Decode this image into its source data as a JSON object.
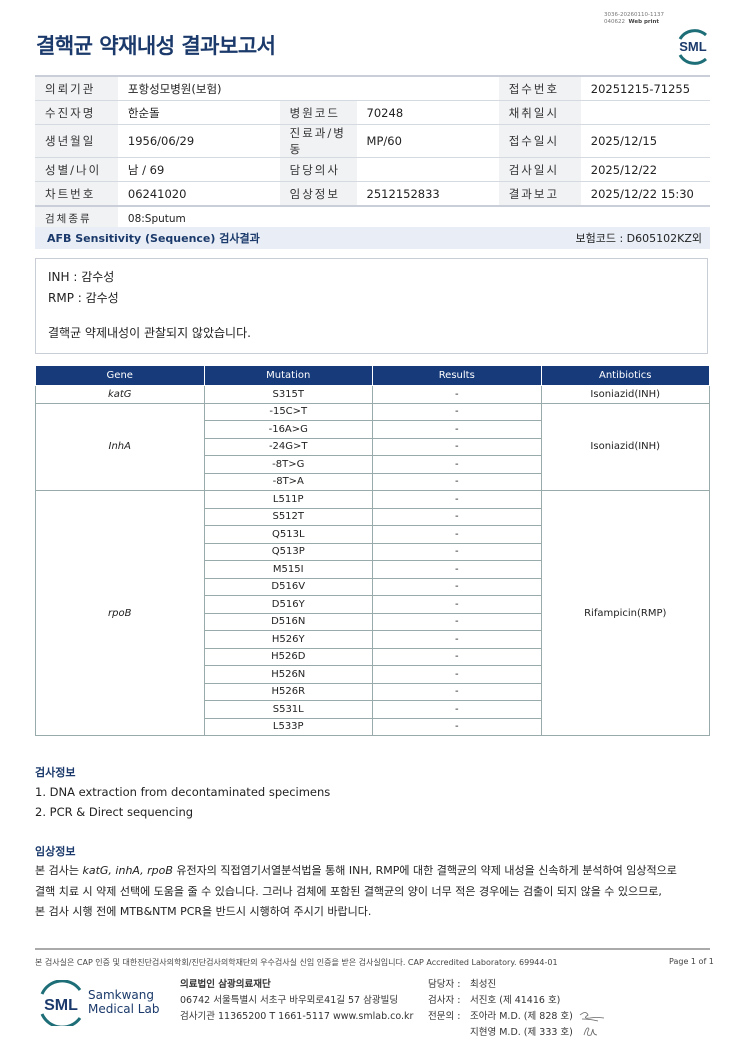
{
  "header": {
    "title": "결핵균 약재내성 결과보고서",
    "meta_line1": "3036-20260110-1137",
    "meta_line2": "040622",
    "web_print": "Web print",
    "logo": "SML"
  },
  "info": {
    "rows": [
      [
        {
          "l": "의뢰기관",
          "v": "포항성모병원(보험)"
        },
        {
          "l": "접수번호",
          "v": "20251215-71255"
        }
      ],
      [
        {
          "l": "수진자명",
          "v": "한순돌"
        },
        {
          "l": "병원코드",
          "v": "70248"
        },
        {
          "l": "채취일시",
          "v": ""
        }
      ],
      [
        {
          "l": "생년월일",
          "v": "1956/06/29"
        },
        {
          "l": "진료과/병동",
          "v": "MP/60"
        },
        {
          "l": "접수일시",
          "v": "2025/12/15"
        }
      ],
      [
        {
          "l": "성별/나이",
          "v": "남 / 69"
        },
        {
          "l": "담당의사",
          "v": ""
        },
        {
          "l": "검사일시",
          "v": "2025/12/22"
        }
      ],
      [
        {
          "l": "차트번호",
          "v": "06241020"
        },
        {
          "l": "임상정보",
          "v": "2512152833"
        },
        {
          "l": "결과보고",
          "v": "2025/12/22 15:30"
        }
      ],
      [
        {
          "l": "검체종류",
          "v": "08:Sputum"
        }
      ]
    ]
  },
  "section": {
    "title": "AFB Sensitivity (Sequence) 검사결과",
    "insurance_code": "보험코드 : D605102KZ외"
  },
  "summary": {
    "line1": "INH : 감수성",
    "line2": "RMP : 감수성",
    "conclusion": "결핵균 약제내성이 관찰되지 않았습니다."
  },
  "results": {
    "headers": [
      "Gene",
      "Mutation",
      "Results",
      "Antibiotics"
    ],
    "groups": [
      {
        "gene": "katG",
        "antibiotic": "Isoniazid(INH)",
        "rows": [
          [
            "S315T",
            "-"
          ]
        ]
      },
      {
        "gene": "InhA",
        "antibiotic": "Isoniazid(INH)",
        "rows": [
          [
            "-15C>T",
            "-"
          ],
          [
            "-16A>G",
            "-"
          ],
          [
            "-24G>T",
            "-"
          ],
          [
            "-8T>G",
            "-"
          ],
          [
            "-8T>A",
            "-"
          ]
        ]
      },
      {
        "gene": "rpoB",
        "antibiotic": "Rifampicin(RMP)",
        "rows": [
          [
            "L511P",
            "-"
          ],
          [
            "S512T",
            "-"
          ],
          [
            "Q513L",
            "-"
          ],
          [
            "Q513P",
            "-"
          ],
          [
            "M515I",
            "-"
          ],
          [
            "D516V",
            "-"
          ],
          [
            "D516Y",
            "-"
          ],
          [
            "D516N",
            "-"
          ],
          [
            "H526Y",
            "-"
          ],
          [
            "H526D",
            "-"
          ],
          [
            "H526N",
            "-"
          ],
          [
            "H526R",
            "-"
          ],
          [
            "S531L",
            "-"
          ],
          [
            "L533P",
            "-"
          ]
        ]
      }
    ]
  },
  "test_info": {
    "title": "검사정보",
    "lines": [
      "1. DNA extraction from decontaminated specimens",
      "2. PCR & Direct sequencing"
    ]
  },
  "clinical_info": {
    "title": "임상정보",
    "line1_pre": "본 검사는 ",
    "line1_genes": "katG, inhA, rpoB",
    "line1_post": " 유전자의 직접염기서열분석법을 통해 INH, RMP에 대한 결핵균의 약제 내성을 신속하게 분석하여 임상적으로",
    "line2": "결핵 치료 시 약제 선택에 도움을 줄 수 있습니다. 그러나 검체에 포함된 결핵균의 양이 너무 적은 경우에는 검출이 되지 않을 수 있으므로,",
    "line3": "본 검사 시행 전에 MTB&NTM PCR을 반드시 시행하여 주시기 바랍니다."
  },
  "footer": {
    "notice": "본 검사실은 CAP 인증 및 대한진단검사의학회/진단검사의학재단의 우수검사실 신임 인증을 받은 검사실입니다.  CAP Accredited Laboratory. 69944-01",
    "page": "Page 1 of 1",
    "logo_sml": "SML",
    "logo_name1": "Samkwang",
    "logo_name2": "Medical Lab",
    "org": "의료법인 삼광의료재단",
    "address": "06742 서울특별시 서초구 바우뫼로41길 57 삼광빌딩",
    "contact": "검사기관 11365200  T 1661-5117  www.smlab.co.kr",
    "staff": [
      {
        "l": "담당자 :",
        "v": "최성진"
      },
      {
        "l": "검사자 :",
        "v": "서진호 (제 41416 호)"
      },
      {
        "l": "전문의 :",
        "v": "조아라 M.D. (제 828 호)"
      },
      {
        "l": "",
        "v": "지현영 M.D. (제 333 호)"
      }
    ]
  },
  "colors": {
    "navy": "#1b3a6b",
    "table_header": "#173a7a",
    "teal": "#1e6e78"
  }
}
